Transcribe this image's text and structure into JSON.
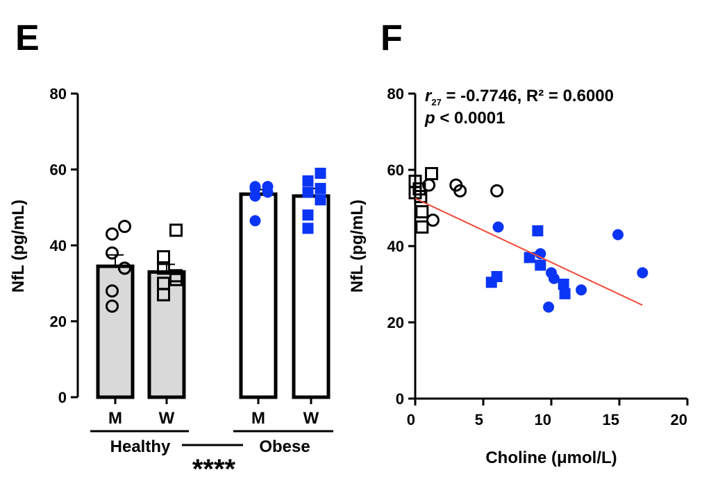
{
  "chart_data": [
    {
      "panel": "E",
      "type": "bar",
      "ylabel": "NfL (pg/mL)",
      "ylim": [
        0,
        80
      ],
      "yticks": [
        "0",
        "20",
        "40",
        "60",
        "80"
      ],
      "categories": [
        "M",
        "W",
        "M",
        "W"
      ],
      "groups": [
        "Healthy",
        "Obese"
      ],
      "significance": "****",
      "bars": [
        {
          "group": "Healthy",
          "sex": "M",
          "mean": 34.5,
          "sem": 3,
          "fill": "#d9d9d9",
          "marker": "open-circle",
          "points": [
            45,
            43,
            38,
            34,
            34,
            28,
            24
          ]
        },
        {
          "group": "Healthy",
          "sex": "W",
          "mean": 33,
          "sem": 2,
          "fill": "#d9d9d9",
          "marker": "open-square",
          "points": [
            44,
            37,
            34,
            32,
            31,
            30,
            27
          ]
        },
        {
          "group": "Obese",
          "sex": "M",
          "mean": 53.5,
          "sem": 1.2,
          "fill": "#ffffff",
          "marker": "blue-circle",
          "points": [
            55.5,
            55,
            55.5,
            54,
            55.5,
            53,
            46.5
          ]
        },
        {
          "group": "Obese",
          "sex": "W",
          "mean": 53,
          "sem": 2,
          "fill": "#ffffff",
          "marker": "blue-square",
          "points": [
            59,
            54,
            57,
            55,
            52,
            48,
            44.5
          ]
        }
      ]
    },
    {
      "panel": "F",
      "type": "scatter",
      "xlabel": "Choline (μmol/L)",
      "ylabel": "NfL (pg/mL)",
      "xlim": [
        0,
        20
      ],
      "ylim": [
        0,
        80
      ],
      "xticks": [
        "0",
        "5",
        "10",
        "15",
        "20"
      ],
      "yticks": [
        "0",
        "20",
        "40",
        "60",
        "80"
      ],
      "annotation": {
        "r": "r",
        "r_sub": "27",
        "r_text": " = -0.7746, ",
        "R2": "R² = 0.6000",
        "p": "p",
        "p_text": " < 0.0001"
      },
      "regression": {
        "x": [
          0,
          16.7
        ],
        "y": [
          52.5,
          24.5
        ],
        "color": "#f04a3a"
      },
      "series": [
        {
          "name": "Healthy M",
          "marker": "open-circle",
          "points": [
            [
              1.0,
              56
            ],
            [
              3.0,
              56
            ],
            [
              3.3,
              54.5
            ],
            [
              6.0,
              54.5
            ],
            [
              1.3,
              46.8
            ]
          ]
        },
        {
          "name": "Healthy W",
          "marker": "open-square",
          "points": [
            [
              0,
              57
            ],
            [
              1.2,
              59
            ],
            [
              0.3,
              55
            ],
            [
              0.4,
              53
            ],
            [
              0.5,
              49
            ],
            [
              0.5,
              45
            ],
            [
              0,
              54
            ]
          ]
        },
        {
          "name": "Obese M",
          "marker": "blue-circle",
          "points": [
            [
              6.1,
              45
            ],
            [
              9.2,
              38
            ],
            [
              10,
              33
            ],
            [
              10.2,
              31.5
            ],
            [
              12.2,
              28.5
            ],
            [
              9.8,
              24
            ],
            [
              14.9,
              43
            ],
            [
              16.7,
              33
            ]
          ]
        },
        {
          "name": "Obese W",
          "marker": "blue-square",
          "points": [
            [
              9,
              44
            ],
            [
              8.4,
              37
            ],
            [
              9.2,
              35
            ],
            [
              5.6,
              30.5
            ],
            [
              6,
              32
            ],
            [
              10.9,
              30
            ],
            [
              11,
              27.5
            ]
          ]
        }
      ],
      "blue": "#0a35f5"
    }
  ]
}
